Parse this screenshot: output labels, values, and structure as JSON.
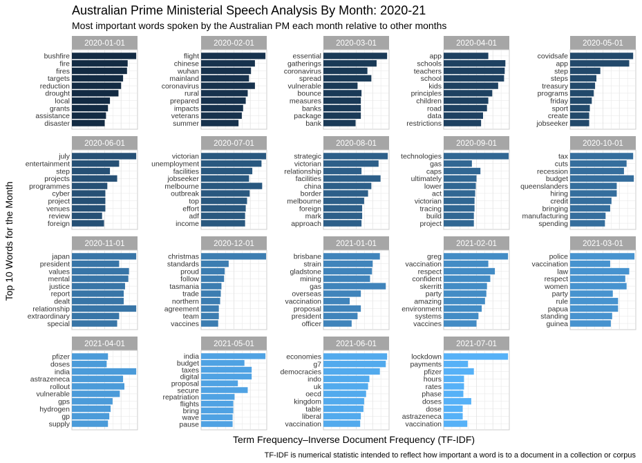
{
  "chart_data": {
    "type": "bar",
    "title": "Australian Prime Ministerial Speech Analysis By Month: 2020-21",
    "subtitle": "Most important words spoken by the Australian PM each month relative to other months",
    "xlabel": "Term Frequency–Inverse Document Frequency (TF-IDF)",
    "ylabel": "Top 10 Words for the Month",
    "caption": "TF-IDF is numerical statistic intended to reflect how important a word is to a document in a collection or corpus",
    "grid": true,
    "layout": "facet grid, 5 columns, free y-axis per panel, no x tick labels",
    "colors": {
      "early": "#132b43",
      "late": "#56b1f7",
      "strip_bg": "#a6a6a6",
      "grid": "#e5e5e5",
      "panel_border": "#cccccc"
    },
    "panels": [
      {
        "month": "2020-01-01",
        "words": [
          "bushfire",
          "fire",
          "fires",
          "targets",
          "reduction",
          "drought",
          "local",
          "grants",
          "assistance",
          "disaster"
        ],
        "values": [
          0.98,
          0.85,
          0.84,
          0.78,
          0.75,
          0.71,
          0.58,
          0.55,
          0.52,
          0.5
        ]
      },
      {
        "month": "2020-02-01",
        "words": [
          "flight",
          "chinese",
          "wuhan",
          "mainland",
          "coronavirus",
          "rural",
          "prepared",
          "impacts",
          "veterans",
          "summer"
        ],
        "values": [
          0.98,
          0.82,
          0.76,
          0.73,
          0.82,
          0.71,
          0.68,
          0.64,
          0.62,
          0.57
        ]
      },
      {
        "month": "2020-03-01",
        "words": [
          "essential",
          "gatherings",
          "coronavirus",
          "spread",
          "vulnerable",
          "bounce",
          "measures",
          "banks",
          "package",
          "bank"
        ],
        "values": [
          0.97,
          0.81,
          0.67,
          0.73,
          0.52,
          0.58,
          0.57,
          0.57,
          0.57,
          0.49
        ]
      },
      {
        "month": "2020-04-01",
        "words": [
          "app",
          "schools",
          "teachers",
          "school",
          "kids",
          "principles",
          "children",
          "road",
          "data",
          "restrictions"
        ],
        "values": [
          0.68,
          0.94,
          0.93,
          0.92,
          0.83,
          0.74,
          0.68,
          0.66,
          0.6,
          0.57
        ]
      },
      {
        "month": "2020-05-01",
        "words": [
          "covidsafe",
          "app",
          "step",
          "steps",
          "treasury",
          "programs",
          "friday",
          "sport",
          "create",
          "jobseeker"
        ],
        "values": [
          0.96,
          0.9,
          0.46,
          0.4,
          0.38,
          0.36,
          0.33,
          0.3,
          0.29,
          0.29
        ]
      },
      {
        "month": "2020-06-01",
        "words": [
          "july",
          "entertainment",
          "step",
          "projects",
          "programmes",
          "cyber",
          "project",
          "venues",
          "review",
          "foreign"
        ],
        "values": [
          0.98,
          0.72,
          0.58,
          0.69,
          0.54,
          0.51,
          0.51,
          0.51,
          0.46,
          0.49
        ]
      },
      {
        "month": "2020-07-01",
        "words": [
          "victorian",
          "unemployment",
          "facilities",
          "jobseeker",
          "melbourne",
          "outbreak",
          "top",
          "effort",
          "adf",
          "income"
        ],
        "values": [
          0.99,
          0.92,
          0.78,
          0.73,
          0.93,
          0.74,
          0.7,
          0.68,
          0.67,
          0.67
        ]
      },
      {
        "month": "2020-08-01",
        "words": [
          "strategic",
          "victorian",
          "relationship",
          "facilities",
          "china",
          "border",
          "melbourne",
          "foreign",
          "mark",
          "approach"
        ],
        "values": [
          0.98,
          0.84,
          0.58,
          0.87,
          0.73,
          0.68,
          0.62,
          0.59,
          0.59,
          0.58
        ]
      },
      {
        "month": "2020-09-01",
        "words": [
          "technologies",
          "gas",
          "caps",
          "ultimately",
          "lower",
          "act",
          "victorian",
          "tracing",
          "build",
          "project"
        ],
        "values": [
          0.99,
          0.43,
          0.56,
          0.5,
          0.49,
          0.48,
          0.47,
          0.47,
          0.46,
          0.46
        ]
      },
      {
        "month": "2020-10-01",
        "words": [
          "tax",
          "cuts",
          "recession",
          "budget",
          "queenslanders",
          "hiring",
          "credit",
          "bringing",
          "manufacturing",
          "spending"
        ],
        "values": [
          0.96,
          0.86,
          0.82,
          0.97,
          0.71,
          0.71,
          0.63,
          0.61,
          0.54,
          0.53
        ]
      },
      {
        "month": "2020-11-01",
        "words": [
          "japan",
          "president",
          "values",
          "mental",
          "justice",
          "report",
          "dealt",
          "relationship",
          "extraordinary",
          "special"
        ],
        "values": [
          0.98,
          0.72,
          0.87,
          0.86,
          0.81,
          0.79,
          0.79,
          0.98,
          0.72,
          0.69
        ]
      },
      {
        "month": "2020-12-01",
        "words": [
          "christmas",
          "standards",
          "proud",
          "follow",
          "tasmania",
          "trade",
          "northern",
          "agreement",
          "team",
          "vaccines"
        ],
        "values": [
          0.99,
          0.42,
          0.36,
          0.35,
          0.31,
          0.3,
          0.29,
          0.27,
          0.27,
          0.26
        ]
      },
      {
        "month": "2021-01-01",
        "words": [
          "brisbane",
          "strain",
          "gladstone",
          "mining",
          "gas",
          "overseas",
          "vaccination",
          "proposal",
          "president",
          "officer"
        ],
        "values": [
          0.86,
          0.75,
          0.74,
          0.71,
          0.95,
          0.57,
          0.4,
          0.57,
          0.52,
          0.43
        ]
      },
      {
        "month": "2021-02-01",
        "words": [
          "greg",
          "vaccination",
          "respect",
          "confident",
          "skerritt",
          "party",
          "amazing",
          "environment",
          "systems",
          "vaccines"
        ],
        "values": [
          0.98,
          0.68,
          0.78,
          0.71,
          0.66,
          0.65,
          0.63,
          0.58,
          0.53,
          0.5
        ]
      },
      {
        "month": "2021-03-01",
        "words": [
          "police",
          "vaccination",
          "law",
          "respect",
          "women",
          "party",
          "rule",
          "papua",
          "standing",
          "guinea"
        ],
        "values": [
          0.98,
          0.61,
          0.9,
          0.84,
          0.86,
          0.65,
          0.73,
          0.73,
          0.64,
          0.62
        ]
      },
      {
        "month": "2021-04-01",
        "words": [
          "pfizer",
          "doses",
          "india",
          "astrazeneca",
          "rollout",
          "vulnerable",
          "gps",
          "hydrogen",
          "gp",
          "supply"
        ],
        "values": [
          0.55,
          0.53,
          0.98,
          0.78,
          0.8,
          0.73,
          0.62,
          0.59,
          0.57,
          0.55
        ]
      },
      {
        "month": "2021-05-01",
        "words": [
          "india",
          "budget",
          "taxes",
          "digital",
          "proposal",
          "secure",
          "repatriation",
          "flights",
          "bring",
          "wave"
        ],
        "values": [
          0.98,
          0.66,
          0.77,
          0.77,
          0.56,
          0.71,
          0.51,
          0.49,
          0.49,
          0.48
        ],
        "extra": {
          "word": "pause",
          "value": 0.48
        }
      },
      {
        "month": "2021-06-01",
        "words": [
          "economies",
          "g7",
          "democracies",
          "indo",
          "uk",
          "oecd",
          "kingdom",
          "table",
          "liberal",
          "vaccination"
        ],
        "values": [
          0.97,
          0.95,
          0.86,
          0.7,
          0.68,
          0.65,
          0.62,
          0.61,
          0.57,
          0.56
        ]
      },
      {
        "month": "2021-07-01",
        "words": [
          "lockdown",
          "payments",
          "pfizer",
          "hours",
          "rates",
          "phase",
          "doses",
          "dose",
          "astrazeneca",
          "vaccination"
        ],
        "values": [
          0.98,
          0.37,
          0.46,
          0.31,
          0.31,
          0.3,
          0.42,
          0.29,
          0.29,
          0.36
        ]
      }
    ]
  }
}
